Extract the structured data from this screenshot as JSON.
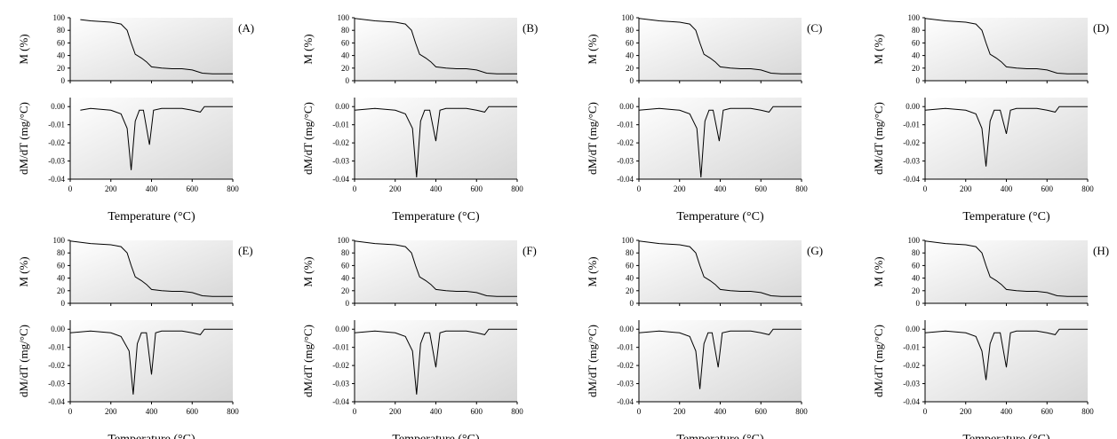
{
  "colors": {
    "line": "#000000",
    "axis": "#000000",
    "plot_bg_light": "#ffffff",
    "plot_bg_dark": "#d6d6d6",
    "text": "#000000"
  },
  "x_axis": {
    "ticks": [
      0,
      200,
      400,
      600,
      800
    ],
    "range": [
      0,
      800
    ],
    "label": "Temperature (°C)"
  },
  "mass_axis": {
    "label": "M (%)",
    "ticks": [
      0,
      20,
      40,
      60,
      80,
      100
    ],
    "range": [
      0,
      100
    ]
  },
  "rate_axis": {
    "label": "dM/dT (mg/°C)",
    "ticks": [
      "0.00",
      "-0.01",
      "-0.02",
      "-0.03",
      "-0.04"
    ],
    "range": [
      -0.04,
      0.005
    ]
  },
  "chart_data": [
    {
      "type": "line",
      "panel_label": "(A)",
      "peak1": {
        "x": 300,
        "y": -0.035
      },
      "peak2": {
        "x": 390,
        "y": -0.021
      },
      "mass": {
        "x": [
          50,
          100,
          200,
          250,
          280,
          300,
          320,
          350,
          375,
          400,
          450,
          500,
          550,
          600,
          650,
          700,
          750,
          800
        ],
        "y": [
          97,
          95,
          93,
          90,
          80,
          60,
          42,
          36,
          30,
          22,
          20,
          19,
          19,
          17,
          12,
          11,
          11,
          11
        ]
      },
      "rate": {
        "x": [
          50,
          100,
          200,
          250,
          280,
          300,
          320,
          340,
          360,
          390,
          410,
          450,
          500,
          550,
          600,
          640,
          660,
          800
        ],
        "y": [
          -0.002,
          -0.001,
          -0.002,
          -0.004,
          -0.012,
          -0.035,
          -0.008,
          -0.002,
          -0.002,
          -0.021,
          -0.002,
          -0.001,
          -0.001,
          -0.001,
          -0.002,
          -0.003,
          0,
          0
        ]
      }
    },
    {
      "type": "line",
      "panel_label": "(B)",
      "peak1": {
        "x": 305,
        "y": -0.039
      },
      "peak2": {
        "x": 400,
        "y": -0.019
      },
      "mass": {
        "x": [
          0,
          100,
          200,
          250,
          280,
          300,
          320,
          350,
          375,
          400,
          450,
          500,
          550,
          600,
          650,
          700,
          750,
          800
        ],
        "y": [
          99,
          95,
          93,
          90,
          80,
          60,
          42,
          36,
          30,
          22,
          20,
          19,
          19,
          17,
          12,
          11,
          11,
          11
        ]
      },
      "rate": {
        "x": [
          0,
          100,
          200,
          250,
          285,
          305,
          325,
          345,
          370,
          400,
          420,
          450,
          500,
          550,
          600,
          640,
          660,
          800
        ],
        "y": [
          -0.002,
          -0.001,
          -0.002,
          -0.004,
          -0.012,
          -0.039,
          -0.008,
          -0.002,
          -0.002,
          -0.019,
          -0.002,
          -0.001,
          -0.001,
          -0.001,
          -0.002,
          -0.003,
          0,
          0
        ]
      }
    },
    {
      "type": "line",
      "panel_label": "(C)",
      "peak1": {
        "x": 305,
        "y": -0.039
      },
      "peak2": {
        "x": 395,
        "y": -0.019
      },
      "mass": {
        "x": [
          0,
          100,
          200,
          250,
          280,
          300,
          320,
          350,
          375,
          400,
          450,
          500,
          550,
          600,
          650,
          700,
          750,
          800
        ],
        "y": [
          99,
          95,
          93,
          90,
          80,
          60,
          42,
          36,
          30,
          22,
          20,
          19,
          19,
          17,
          12,
          11,
          11,
          11
        ]
      },
      "rate": {
        "x": [
          0,
          100,
          200,
          250,
          285,
          305,
          325,
          345,
          365,
          395,
          415,
          450,
          500,
          550,
          600,
          640,
          660,
          800
        ],
        "y": [
          -0.002,
          -0.001,
          -0.002,
          -0.004,
          -0.012,
          -0.039,
          -0.008,
          -0.002,
          -0.002,
          -0.019,
          -0.002,
          -0.001,
          -0.001,
          -0.001,
          -0.002,
          -0.003,
          0,
          0
        ]
      }
    },
    {
      "type": "line",
      "panel_label": "(D)",
      "peak1": {
        "x": 300,
        "y": -0.033
      },
      "peak2": {
        "x": 400,
        "y": -0.015
      },
      "mass": {
        "x": [
          0,
          100,
          200,
          250,
          280,
          300,
          320,
          350,
          375,
          400,
          450,
          500,
          550,
          600,
          650,
          700,
          750,
          800
        ],
        "y": [
          99,
          95,
          93,
          90,
          80,
          60,
          42,
          36,
          30,
          22,
          20,
          19,
          19,
          17,
          12,
          11,
          11,
          11
        ]
      },
      "rate": {
        "x": [
          0,
          100,
          200,
          250,
          280,
          300,
          320,
          340,
          370,
          400,
          420,
          450,
          500,
          550,
          600,
          640,
          660,
          800
        ],
        "y": [
          -0.002,
          -0.001,
          -0.002,
          -0.004,
          -0.012,
          -0.033,
          -0.008,
          -0.002,
          -0.002,
          -0.015,
          -0.002,
          -0.001,
          -0.001,
          -0.001,
          -0.002,
          -0.003,
          0,
          0
        ]
      }
    },
    {
      "type": "line",
      "panel_label": "(E)",
      "peak1": {
        "x": 310,
        "y": -0.036
      },
      "peak2": {
        "x": 400,
        "y": -0.025
      },
      "mass": {
        "x": [
          0,
          100,
          200,
          250,
          280,
          300,
          320,
          350,
          375,
          400,
          450,
          500,
          550,
          600,
          650,
          700,
          750,
          800
        ],
        "y": [
          99,
          95,
          93,
          90,
          80,
          60,
          42,
          36,
          30,
          22,
          20,
          19,
          19,
          17,
          12,
          11,
          11,
          11
        ]
      },
      "rate": {
        "x": [
          0,
          100,
          200,
          250,
          290,
          310,
          330,
          350,
          375,
          400,
          420,
          450,
          500,
          550,
          600,
          640,
          660,
          800
        ],
        "y": [
          -0.002,
          -0.001,
          -0.002,
          -0.004,
          -0.012,
          -0.036,
          -0.008,
          -0.002,
          -0.002,
          -0.025,
          -0.002,
          -0.001,
          -0.001,
          -0.001,
          -0.002,
          -0.003,
          0,
          0
        ]
      }
    },
    {
      "type": "line",
      "panel_label": "(F)",
      "peak1": {
        "x": 305,
        "y": -0.036
      },
      "peak2": {
        "x": 400,
        "y": -0.021
      },
      "mass": {
        "x": [
          0,
          100,
          200,
          250,
          280,
          300,
          320,
          350,
          375,
          400,
          450,
          500,
          550,
          600,
          650,
          700,
          750,
          800
        ],
        "y": [
          99,
          95,
          93,
          90,
          80,
          60,
          42,
          36,
          30,
          22,
          20,
          19,
          19,
          17,
          12,
          11,
          11,
          11
        ]
      },
      "rate": {
        "x": [
          0,
          100,
          200,
          250,
          285,
          305,
          325,
          345,
          370,
          400,
          420,
          450,
          500,
          550,
          600,
          640,
          660,
          800
        ],
        "y": [
          -0.002,
          -0.001,
          -0.002,
          -0.004,
          -0.012,
          -0.036,
          -0.008,
          -0.002,
          -0.002,
          -0.021,
          -0.002,
          -0.001,
          -0.001,
          -0.001,
          -0.002,
          -0.003,
          0,
          0
        ]
      }
    },
    {
      "type": "line",
      "panel_label": "(G)",
      "peak1": {
        "x": 300,
        "y": -0.033
      },
      "peak2": {
        "x": 390,
        "y": -0.021
      },
      "mass": {
        "x": [
          0,
          100,
          200,
          250,
          280,
          300,
          320,
          350,
          375,
          400,
          450,
          500,
          550,
          600,
          650,
          700,
          750,
          800
        ],
        "y": [
          99,
          95,
          93,
          90,
          80,
          60,
          42,
          36,
          30,
          22,
          20,
          19,
          19,
          17,
          12,
          11,
          11,
          11
        ]
      },
      "rate": {
        "x": [
          0,
          100,
          200,
          250,
          280,
          300,
          320,
          340,
          360,
          390,
          410,
          450,
          500,
          550,
          600,
          640,
          660,
          800
        ],
        "y": [
          -0.002,
          -0.001,
          -0.002,
          -0.004,
          -0.012,
          -0.033,
          -0.008,
          -0.002,
          -0.002,
          -0.021,
          -0.002,
          -0.001,
          -0.001,
          -0.001,
          -0.002,
          -0.003,
          0,
          0
        ]
      }
    },
    {
      "type": "line",
      "panel_label": "(H)",
      "peak1": {
        "x": 300,
        "y": -0.028
      },
      "peak2": {
        "x": 400,
        "y": -0.021
      },
      "mass": {
        "x": [
          0,
          100,
          200,
          250,
          280,
          300,
          320,
          350,
          375,
          400,
          450,
          500,
          550,
          600,
          650,
          700,
          750,
          800
        ],
        "y": [
          99,
          95,
          93,
          90,
          80,
          60,
          42,
          36,
          30,
          22,
          20,
          19,
          19,
          17,
          12,
          11,
          11,
          11
        ]
      },
      "rate": {
        "x": [
          0,
          100,
          200,
          250,
          280,
          300,
          320,
          340,
          370,
          400,
          420,
          450,
          500,
          550,
          600,
          640,
          660,
          800
        ],
        "y": [
          -0.002,
          -0.001,
          -0.002,
          -0.004,
          -0.012,
          -0.028,
          -0.008,
          -0.002,
          -0.002,
          -0.021,
          -0.002,
          -0.001,
          -0.001,
          -0.001,
          -0.002,
          -0.003,
          0,
          0
        ]
      }
    }
  ]
}
